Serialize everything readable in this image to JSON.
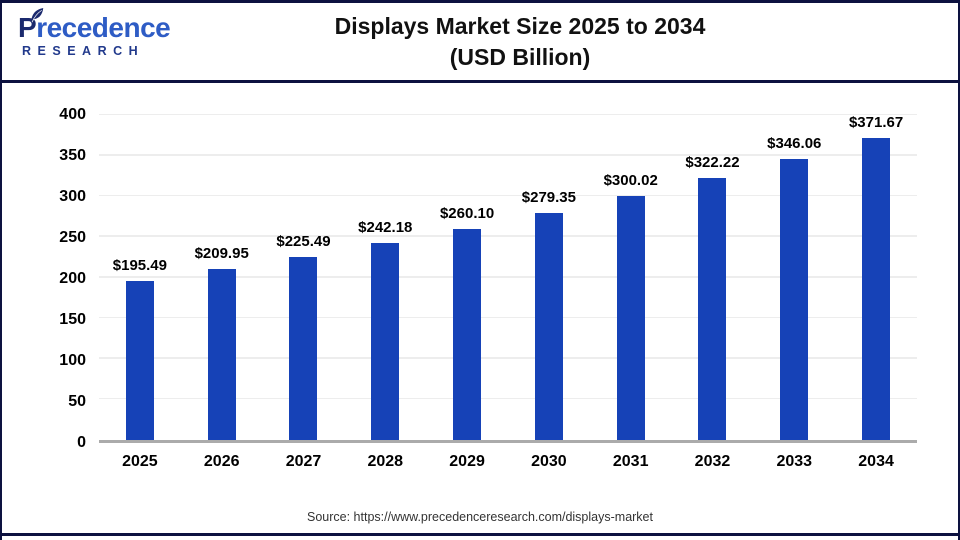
{
  "header": {
    "logo": {
      "brand": "Precedence",
      "subtitle": "RESEARCH"
    },
    "title_line1": "Displays Market Size 2025 to 2034",
    "title_line2": "(USD Billion)"
  },
  "footer": {
    "source": "Source: https://www.precedenceresearch.com/displays-market"
  },
  "colors": {
    "bar": "#1642b7",
    "frame": "#0d1240",
    "grid": "#ededed",
    "baseline": "#ababab",
    "logo_brand": "#2e5cc5",
    "logo_dark": "#1b2a6e",
    "logo_sub": "#223a8c"
  },
  "chart_data": {
    "type": "bar",
    "title": "Displays Market Size 2025 to 2034 (USD Billion)",
    "categories": [
      "2025",
      "2026",
      "2027",
      "2028",
      "2029",
      "2030",
      "2031",
      "2032",
      "2033",
      "2034"
    ],
    "values": [
      195.49,
      209.95,
      225.49,
      242.18,
      260.1,
      279.35,
      300.02,
      322.22,
      346.06,
      371.67
    ],
    "value_labels": [
      "$195.49",
      "$209.95",
      "$225.49",
      "$242.18",
      "$260.10",
      "$279.35",
      "$300.02",
      "$322.22",
      "$346.06",
      "$371.67"
    ],
    "xlabel": "",
    "ylabel": "",
    "ylim": [
      0,
      400
    ],
    "yticks": [
      0,
      50,
      100,
      150,
      200,
      250,
      300,
      350,
      400
    ],
    "grid": true,
    "legend": false,
    "bar_color": "#1642b7"
  }
}
